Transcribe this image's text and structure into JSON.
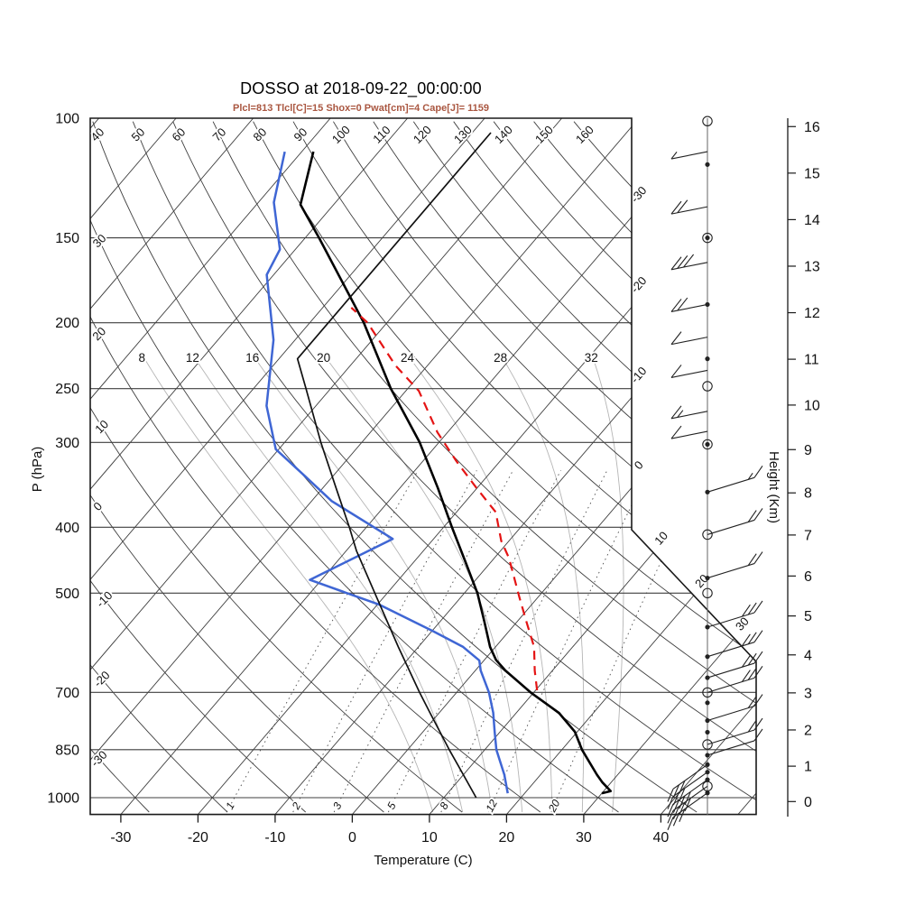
{
  "title": "DOSSO at 2018-09-22_00:00:00",
  "subtitle": "Plcl=813 Tlcl[C]=15 Shox=0 Pwat[cm]=4 Cape[J]= 1159",
  "colors": {
    "subtitle": "#aa5741",
    "temperature": "#000000",
    "dewpoint": "#3f66d4",
    "parcel": "#e41414",
    "reference": "#111111",
    "grid": "#3f3f3f",
    "moist": "#b5b5b5",
    "mixing": "#4a4a4a",
    "frame": "#1a1a1a",
    "barbs": "#222222"
  },
  "axes": {
    "pressure": {
      "label": "P (hPa)",
      "ticks": [
        100,
        150,
        200,
        250,
        300,
        400,
        500,
        700,
        850,
        1000
      ]
    },
    "temperature": {
      "label": "Temperature (C)",
      "ticks": [
        -30,
        -20,
        -10,
        0,
        10,
        20,
        30,
        40
      ]
    },
    "height": {
      "label": "Height (Km)",
      "ticks": [
        0,
        1,
        2,
        3,
        4,
        5,
        6,
        7,
        8,
        9,
        10,
        11,
        12,
        13,
        14,
        15,
        16
      ]
    }
  },
  "background": {
    "isotherms": {
      "start": -110,
      "end": 50,
      "step": 10,
      "right_edge_labels": [
        -30,
        -20,
        -10,
        0
      ],
      "cut_labels": [
        10,
        20,
        30
      ]
    },
    "dry_adiabats": {
      "start": -30,
      "end": 160,
      "step": 10,
      "left_labels": [
        -30,
        -20,
        -10,
        0,
        10,
        20,
        30,
        40
      ],
      "top_labels": [
        50,
        60,
        70,
        80,
        90,
        100,
        110,
        120,
        130,
        140,
        150,
        160
      ]
    },
    "moist_adiabats": [
      8,
      12,
      16,
      20,
      24,
      28,
      32
    ],
    "mixing_ratio_lines": [
      1,
      2,
      3,
      5,
      8,
      12,
      20
    ]
  },
  "chart_data": {
    "type": "line",
    "diagram": "skew-t log-p sounding (pressure hPa vs temperature C)",
    "series": [
      {
        "name": "temperature",
        "color_key": "temperature",
        "style": "solid",
        "points": [
          [
            985,
            30.0
          ],
          [
            978,
            30.9
          ],
          [
            950,
            28.9
          ],
          [
            925,
            27.3
          ],
          [
            850,
            22.6
          ],
          [
            800,
            19.7
          ],
          [
            750,
            15.5
          ],
          [
            700,
            9.6
          ],
          [
            650,
            3.9
          ],
          [
            627,
            1.5
          ],
          [
            600,
            -0.7
          ],
          [
            550,
            -4.3
          ],
          [
            500,
            -8.3
          ],
          [
            450,
            -13.3
          ],
          [
            400,
            -18.9
          ],
          [
            350,
            -25.1
          ],
          [
            300,
            -32.5
          ],
          [
            250,
            -42.2
          ],
          [
            200,
            -53.0
          ],
          [
            150,
            -68.2
          ],
          [
            134,
            -74.3
          ],
          [
            112,
            -78.5
          ]
        ]
      },
      {
        "name": "dewpoint",
        "color_key": "dewpoint",
        "style": "solid",
        "points": [
          [
            985,
            17.8
          ],
          [
            925,
            15.3
          ],
          [
            850,
            11.5
          ],
          [
            800,
            9.3
          ],
          [
            750,
            7.0
          ],
          [
            700,
            4.2
          ],
          [
            650,
            0.7
          ],
          [
            628,
            -0.6
          ],
          [
            600,
            -4.2
          ],
          [
            569,
            -9.8
          ],
          [
            520,
            -19.7
          ],
          [
            478,
            -31.5
          ],
          [
            416,
            -25.3
          ],
          [
            366,
            -37.4
          ],
          [
            336,
            -43.7
          ],
          [
            307,
            -50.4
          ],
          [
            265,
            -56.4
          ],
          [
            212,
            -62.8
          ],
          [
            170,
            -70.9
          ],
          [
            156,
            -72.0
          ],
          [
            133,
            -78.0
          ],
          [
            112,
            -82.2
          ]
        ]
      },
      {
        "name": "parcel_path",
        "color_key": "parcel",
        "style": "dashed",
        "points": [
          [
            695,
            10.2
          ],
          [
            650,
            7.7
          ],
          [
            600,
            5.0
          ],
          [
            552,
            1.3
          ],
          [
            506,
            -2.5
          ],
          [
            444,
            -8.1
          ],
          [
            419,
            -11.0
          ],
          [
            380,
            -14.9
          ],
          [
            350,
            -20.1
          ],
          [
            320,
            -25.6
          ],
          [
            290,
            -31.3
          ],
          [
            252,
            -38.3
          ],
          [
            231,
            -44.2
          ],
          [
            200,
            -52.5
          ],
          [
            190,
            -56.3
          ]
        ]
      },
      {
        "name": "standard_atmosphere_reference",
        "color_key": "reference",
        "style": "solid",
        "points": [
          [
            1000,
            14.2
          ],
          [
            900,
            8.5
          ],
          [
            850,
            5.4
          ],
          [
            750,
            -1.2
          ],
          [
            700,
            -4.8
          ],
          [
            600,
            -12.6
          ],
          [
            500,
            -21.6
          ],
          [
            433,
            -28.7
          ],
          [
            400,
            -32.2
          ],
          [
            350,
            -38.3
          ],
          [
            300,
            -45.3
          ],
          [
            250,
            -53.2
          ],
          [
            226,
            -57.6
          ],
          [
            105,
            -57.6
          ]
        ]
      }
    ],
    "wind_barbs": [
      {
        "p": 101,
        "marker": "circle",
        "dir": "none",
        "full": 0,
        "half": 0
      },
      {
        "p": 112,
        "marker": "none",
        "dir": "L",
        "full": 0,
        "half": 1
      },
      {
        "p": 117,
        "marker": "dot",
        "dir": "none",
        "full": 0,
        "half": 0
      },
      {
        "p": 135,
        "marker": "none",
        "dir": "L",
        "full": 2,
        "half": 0
      },
      {
        "p": 150,
        "marker": "both",
        "dir": "none",
        "full": 0,
        "half": 0
      },
      {
        "p": 163,
        "marker": "none",
        "dir": "L",
        "full": 3,
        "half": 0
      },
      {
        "p": 188,
        "marker": "dot",
        "dir": "L",
        "full": 2,
        "half": 0
      },
      {
        "p": 210,
        "marker": "none",
        "dir": "L",
        "full": 1,
        "half": 0
      },
      {
        "p": 226,
        "marker": "dot",
        "dir": "none",
        "full": 0,
        "half": 0
      },
      {
        "p": 235,
        "marker": "none",
        "dir": "L",
        "full": 1,
        "half": 0
      },
      {
        "p": 248,
        "marker": "circle",
        "dir": "none",
        "full": 0,
        "half": 0
      },
      {
        "p": 270,
        "marker": "none",
        "dir": "L",
        "full": 1,
        "half": 1
      },
      {
        "p": 289,
        "marker": "none",
        "dir": "L",
        "full": 1,
        "half": 0
      },
      {
        "p": 302,
        "marker": "both",
        "dir": "none",
        "full": 0,
        "half": 0
      },
      {
        "p": 355,
        "marker": "dot",
        "dir": "R",
        "full": 1,
        "half": 1
      },
      {
        "p": 410,
        "marker": "circle",
        "dir": "R",
        "full": 2,
        "half": 0
      },
      {
        "p": 475,
        "marker": "dot",
        "dir": "R",
        "full": 2,
        "half": 0
      },
      {
        "p": 500,
        "marker": "circle",
        "dir": "none",
        "full": 0,
        "half": 0
      },
      {
        "p": 561,
        "marker": "dot",
        "dir": "R",
        "full": 3,
        "half": 0
      },
      {
        "p": 620,
        "marker": "dot",
        "dir": "R",
        "full": 3,
        "half": 0
      },
      {
        "p": 666,
        "marker": "dot",
        "dir": "R",
        "full": 3,
        "half": 0
      },
      {
        "p": 700,
        "marker": "circle",
        "dir": "R",
        "full": 3,
        "half": 0
      },
      {
        "p": 725,
        "marker": "dot",
        "dir": "none",
        "full": 0,
        "half": 0
      },
      {
        "p": 770,
        "marker": "dot",
        "dir": "R",
        "full": 2,
        "half": 0
      },
      {
        "p": 801,
        "marker": "dot",
        "dir": "none",
        "full": 0,
        "half": 0
      },
      {
        "p": 835,
        "marker": "circle",
        "dir": "R",
        "full": 2,
        "half": 0
      },
      {
        "p": 866,
        "marker": "dot",
        "dir": "R",
        "full": 1,
        "half": 0
      },
      {
        "p": 894,
        "marker": "dot",
        "dir": "DL",
        "full": 3,
        "half": 0
      },
      {
        "p": 917,
        "marker": "dot",
        "dir": "DL",
        "full": 3,
        "half": 0
      },
      {
        "p": 941,
        "marker": "dot",
        "dir": "DL",
        "full": 4,
        "half": 0
      },
      {
        "p": 962,
        "marker": "circle",
        "dir": "DL",
        "full": 4,
        "half": 0
      },
      {
        "p": 984,
        "marker": "dot",
        "dir": "DL",
        "full": 3,
        "half": 0
      }
    ],
    "indices_shown": {
      "plcl_hpa": 813,
      "tlcl_c": 15,
      "shox": 0,
      "pwat_cm": 4,
      "cape_j": 1159
    }
  }
}
